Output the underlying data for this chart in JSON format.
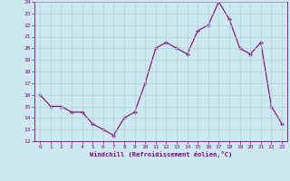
{
  "x": [
    0,
    1,
    2,
    3,
    4,
    5,
    6,
    7,
    8,
    9,
    10,
    11,
    12,
    13,
    14,
    15,
    16,
    17,
    18,
    19,
    20,
    21,
    22,
    23
  ],
  "y": [
    16,
    15,
    15,
    14.5,
    14.5,
    13.5,
    13,
    12.5,
    14,
    14.5,
    17,
    20,
    20.5,
    20,
    19.5,
    21.5,
    22,
    24,
    22.5,
    20,
    19.5,
    20.5,
    15,
    13.5
  ],
  "xlabel": "Windchill (Refroidissement éolien,°C)",
  "ylim": [
    12,
    24
  ],
  "xlim": [
    -0.5,
    23.5
  ],
  "yticks": [
    12,
    13,
    14,
    15,
    16,
    17,
    18,
    19,
    20,
    21,
    22,
    23,
    24
  ],
  "xticks": [
    0,
    1,
    2,
    3,
    4,
    5,
    6,
    7,
    8,
    9,
    10,
    11,
    12,
    13,
    14,
    15,
    16,
    17,
    18,
    19,
    20,
    21,
    22,
    23
  ],
  "line_color": "#800080",
  "marker_color": "#800080",
  "bg_color": "#cce9f0",
  "grid_color": "#b0d0d8",
  "xlabel_color": "#800080",
  "tick_color": "#800080"
}
